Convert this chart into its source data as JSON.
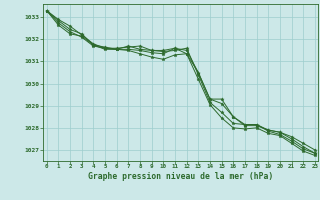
{
  "title": "Graphe pression niveau de la mer (hPa)",
  "background_color": "#cce8e8",
  "grid_color": "#9ecece",
  "line_color": "#2d6a2d",
  "text_color": "#2d6a2d",
  "xlim": [
    -0.3,
    23.3
  ],
  "ylim": [
    1026.5,
    1033.6
  ],
  "yticks": [
    1027,
    1028,
    1029,
    1030,
    1031,
    1032,
    1033
  ],
  "xticks": [
    0,
    1,
    2,
    3,
    4,
    5,
    6,
    7,
    8,
    9,
    10,
    11,
    12,
    13,
    14,
    15,
    16,
    17,
    18,
    19,
    20,
    21,
    22,
    23
  ],
  "series": [
    [
      1033.3,
      1032.9,
      1032.6,
      1032.2,
      1031.8,
      1031.6,
      1031.55,
      1031.55,
      1031.5,
      1031.4,
      1031.35,
      1031.6,
      1031.5,
      1030.5,
      1029.3,
      1029.1,
      1028.5,
      1028.1,
      1028.1,
      1027.9,
      1027.8,
      1027.5,
      1027.15,
      1026.85
    ],
    [
      1033.3,
      1032.75,
      1032.35,
      1032.1,
      1031.7,
      1031.6,
      1031.6,
      1031.65,
      1031.7,
      1031.5,
      1031.45,
      1031.5,
      1031.6,
      1030.4,
      1029.15,
      1028.7,
      1028.2,
      1028.15,
      1028.15,
      1027.85,
      1027.7,
      1027.4,
      1027.05,
      1026.85
    ],
    [
      1033.3,
      1032.65,
      1032.25,
      1032.15,
      1031.75,
      1031.55,
      1031.55,
      1031.5,
      1031.35,
      1031.2,
      1031.1,
      1031.3,
      1031.35,
      1030.2,
      1029.05,
      1028.45,
      1028.0,
      1027.95,
      1028.0,
      1027.75,
      1027.65,
      1027.3,
      1026.95,
      1026.75
    ],
    [
      1033.3,
      1032.85,
      1032.45,
      1032.25,
      1031.75,
      1031.65,
      1031.55,
      1031.7,
      1031.55,
      1031.5,
      1031.5,
      1031.6,
      1031.35,
      1030.5,
      1029.3,
      1029.3,
      1028.5,
      1028.15,
      1028.15,
      1027.9,
      1027.8,
      1027.6,
      1027.3,
      1027.0
    ]
  ]
}
